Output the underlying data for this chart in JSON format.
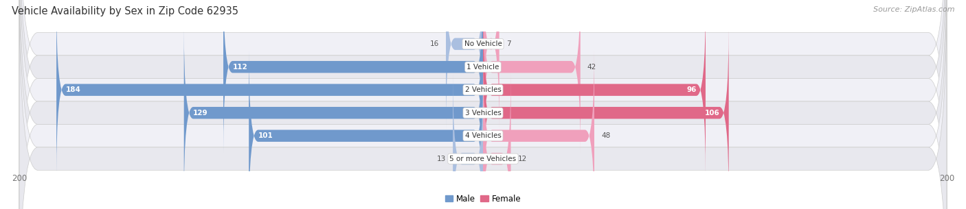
{
  "title": "Vehicle Availability by Sex in Zip Code 62935",
  "source": "Source: ZipAtlas.com",
  "categories": [
    "No Vehicle",
    "1 Vehicle",
    "2 Vehicles",
    "3 Vehicles",
    "4 Vehicles",
    "5 or more Vehicles"
  ],
  "male_values": [
    16,
    112,
    184,
    129,
    101,
    13
  ],
  "female_values": [
    7,
    42,
    96,
    106,
    48,
    12
  ],
  "male_color_light": "#AABFE0",
  "male_color_dark": "#7099CC",
  "female_color_light": "#F0A0BC",
  "female_color_dark": "#E06888",
  "bar_bg_color": "#E8E8EE",
  "label_color_inside": "#FFFFFF",
  "label_color_outside": "#555555",
  "axis_max": 200,
  "background_color": "#FFFFFF",
  "row_bg_light": "#F0F0F6",
  "row_bg_dark": "#E0E0EA",
  "title_fontsize": 10.5,
  "source_fontsize": 8,
  "bar_height": 0.52,
  "legend_labels": [
    "Male",
    "Female"
  ]
}
